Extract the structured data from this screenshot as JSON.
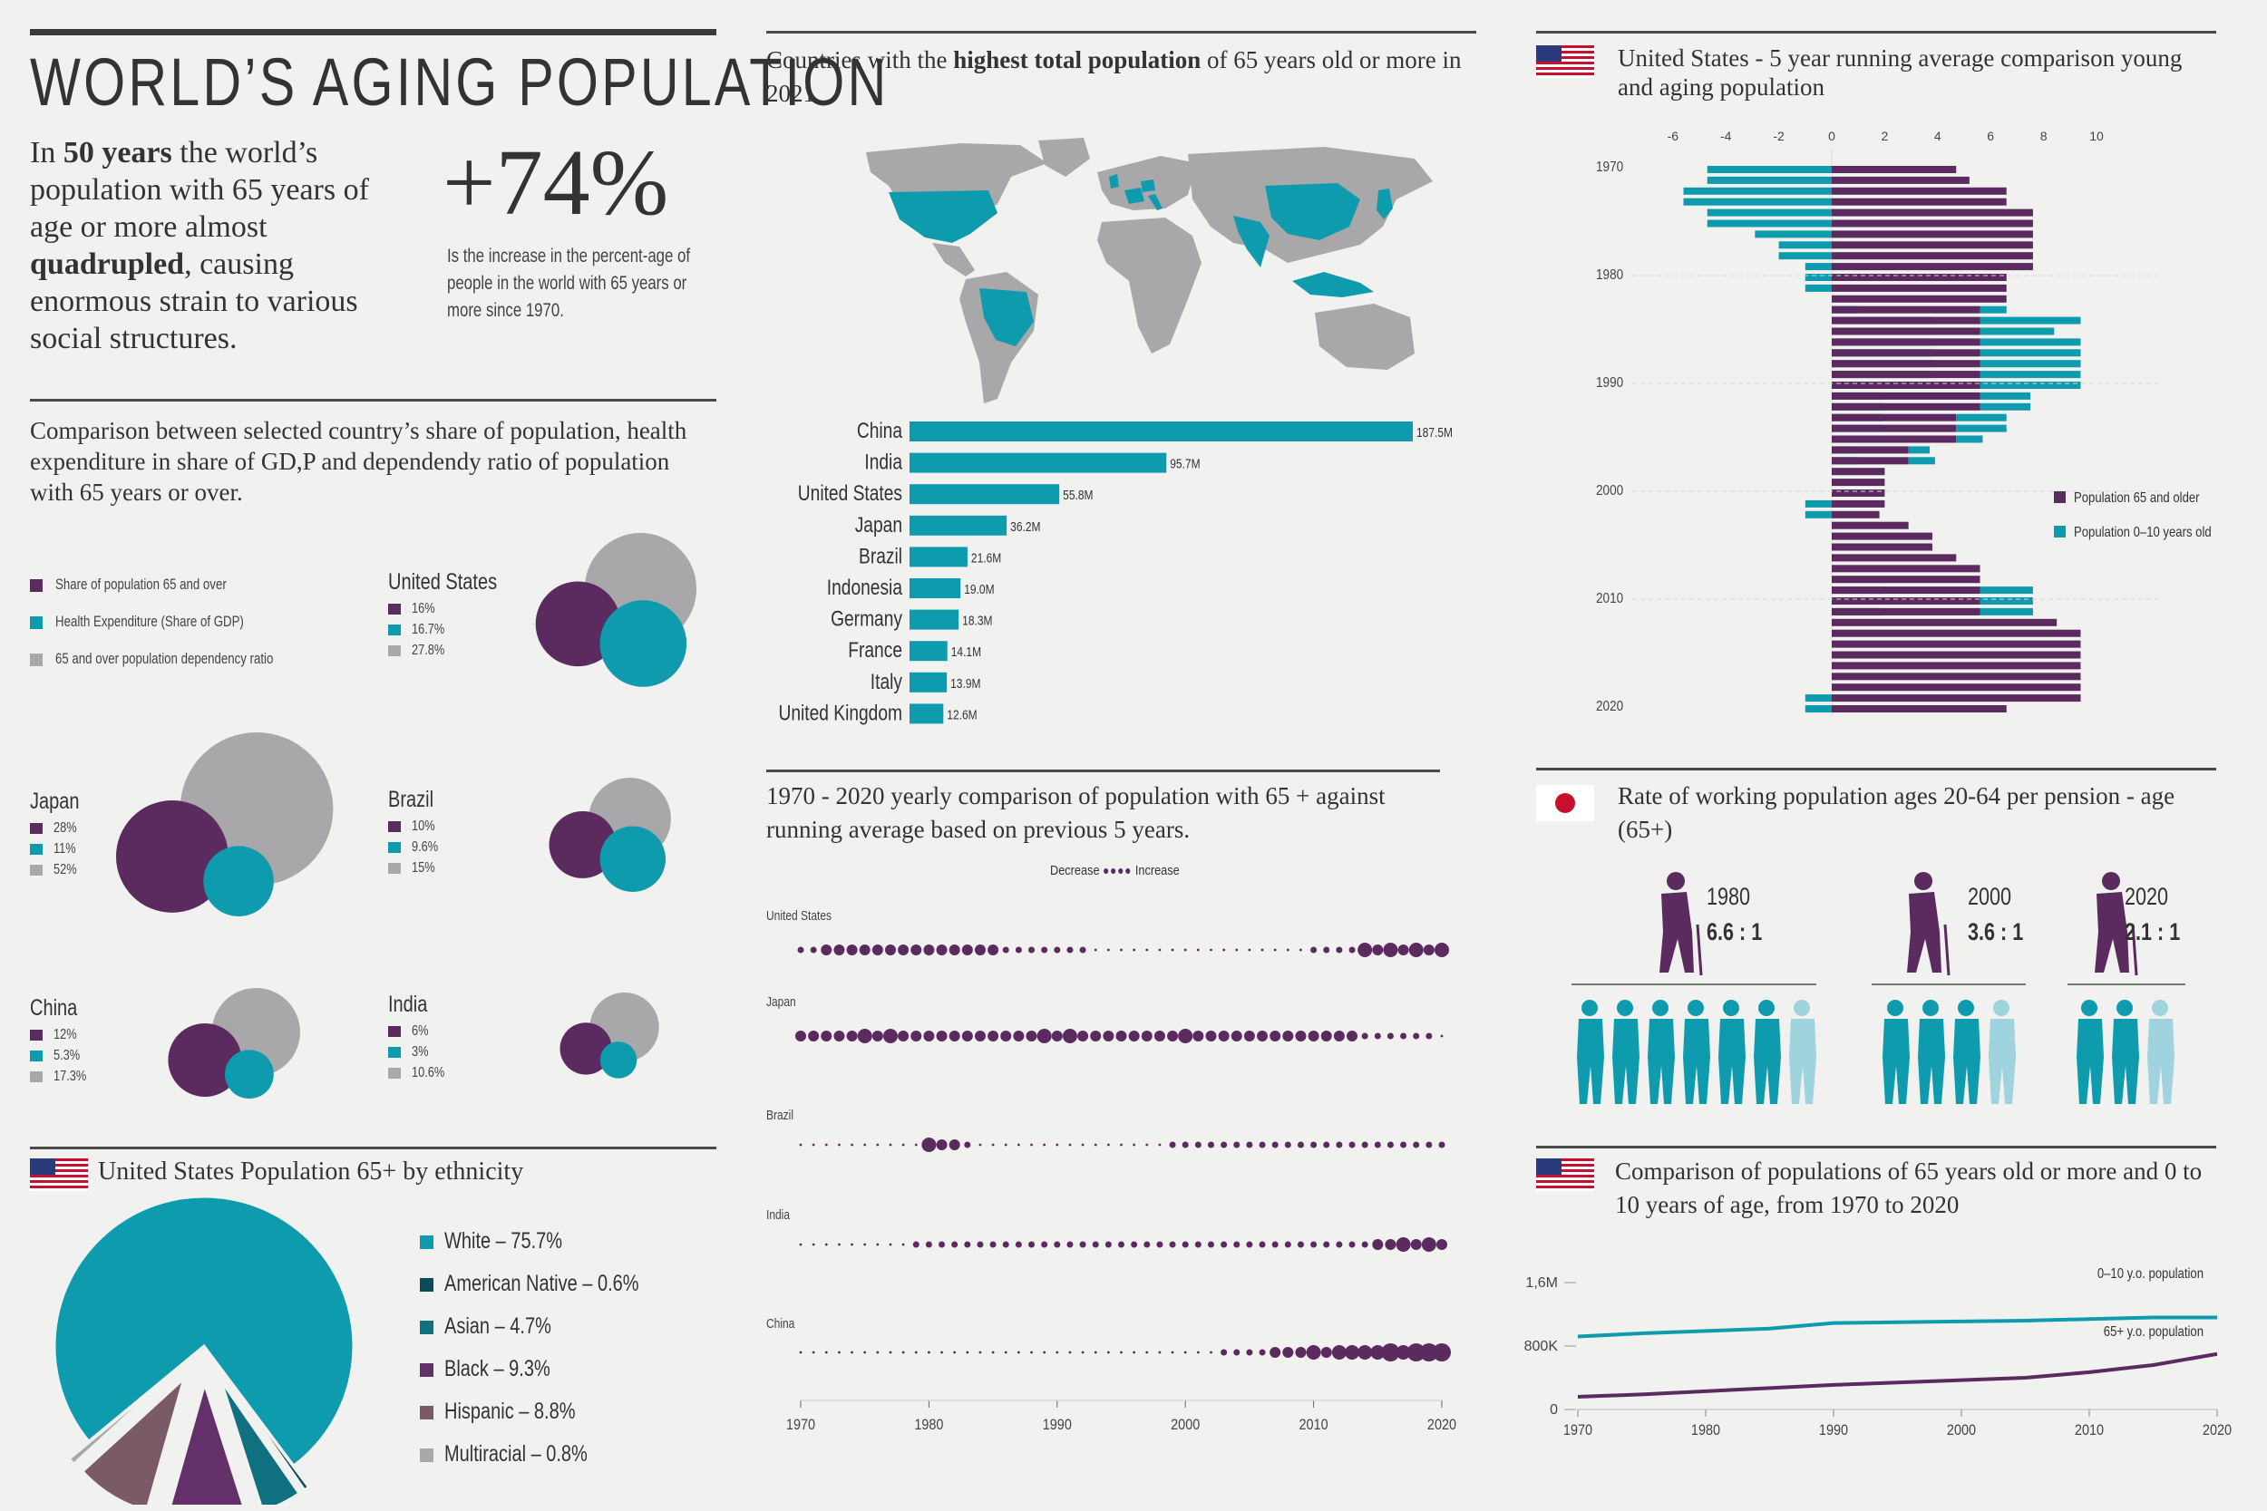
{
  "colors": {
    "purple": "#5b2a5e",
    "teal": "#0e9bae",
    "gray": "#a8a7a9",
    "dark": "#333333",
    "mauve": "#7a5a67",
    "darkteal": "#0d5d6b",
    "lightteal": "#9fd3dd"
  },
  "header": {
    "title": "WORLD’S AGING POPULATION"
  },
  "intro": {
    "p1": "In ",
    "bold1": "50 years",
    "p2": " the world’s population with 65 years of age or more almost ",
    "bold2": "quadrupled",
    "p3": ", causing enormous strain to various social structures."
  },
  "stat": {
    "value": "+74%",
    "caption": "Is the increase in the percent-age of people in the world with 65 years or more since 1970."
  },
  "bubbles": {
    "title": "Comparison between selected country’s share of population, health expenditure in share of GD,P and dependendy ratio of population with 65 years or over.",
    "legend": [
      "Share of population 65 and over",
      "Health Expenditure (Share of GDP)",
      "65 and over population dependency ratio"
    ],
    "countries": [
      {
        "name": "United States",
        "values": [
          "16%",
          "16.7%",
          "27.8%"
        ],
        "nums": [
          16,
          16.7,
          27.8
        ]
      },
      {
        "name": "Japan",
        "values": [
          "28%",
          "11%",
          "52%"
        ],
        "nums": [
          28,
          11,
          52
        ]
      },
      {
        "name": "Brazil",
        "values": [
          "10%",
          "9.6%",
          "15%"
        ],
        "nums": [
          10,
          9.6,
          15
        ]
      },
      {
        "name": "China",
        "values": [
          "12%",
          "5.3%",
          "17.3%"
        ],
        "nums": [
          12,
          5.3,
          17.3
        ]
      },
      {
        "name": "India",
        "values": [
          "6%",
          "3%",
          "10.6%"
        ],
        "nums": [
          6,
          3,
          10.6
        ]
      }
    ]
  },
  "ethnicity": {
    "title": "United States Population 65+ by ethnicity",
    "slices": [
      {
        "label": "White",
        "value": 75.7,
        "text": "White – 75.7%",
        "color": "#0e9bae"
      },
      {
        "label": "American Native",
        "value": 0.6,
        "text": "American Native – 0.6%",
        "color": "#0d4b58"
      },
      {
        "label": "Asian",
        "value": 4.7,
        "text": "Asian – 4.7%",
        "color": "#0f7180"
      },
      {
        "label": "Black",
        "value": 9.3,
        "text": "Black – 9.3%",
        "color": "#633069"
      },
      {
        "label": "Hispanic",
        "value": 8.8,
        "text": "Hispanic – 8.8%",
        "color": "#7a5a67"
      },
      {
        "label": "Multiracial",
        "value": 0.8,
        "text": "Multiracial – 0.8%",
        "color": "#a8a7a9"
      }
    ]
  },
  "countries_bar": {
    "title_pre": "Countries with the ",
    "title_bold": "highest total population",
    "title_post": " of 65 years old or more in 2021"
  },
  "yearly": {
    "title": "1970 - 2020 yearly comparison of population with 65 + against running average based on previous 5 years.",
    "legend_left": "Decrease",
    "legend_right": "Increase",
    "rows": [
      "United States",
      "Japan",
      "Brazil",
      "India",
      "China"
    ]
  },
  "us_running": {
    "title": "United States - 5 year running average comparison young and aging population"
  },
  "pension": {
    "title": "Rate of working population ages 20-64 per pension - age (65+)",
    "items": [
      {
        "year": "1980",
        "ratio": "6.6 : 1",
        "workers": 7
      },
      {
        "year": "2000",
        "ratio": "3.6 : 1",
        "workers": 4
      },
      {
        "year": "2020",
        "ratio": "2.1 : 1",
        "workers": 3
      }
    ]
  },
  "lines_title": "Comparison of populations of 65 years old or more and 0 to 10 years of age, from 1970 to 2020",
  "chart_data": [
    {
      "type": "bar",
      "title": "Countries with the highest total population of 65 years old or more in 2021",
      "categories": [
        "China",
        "India",
        "United States",
        "Japan",
        "Brazil",
        "Indonesia",
        "Germany",
        "France",
        "Italy",
        "United Kingdom"
      ],
      "values": [
        187.5,
        95.7,
        55.8,
        36.2,
        21.6,
        19.0,
        18.3,
        14.1,
        13.9,
        12.6
      ],
      "labels": [
        "187.5M",
        "95.7M",
        "55.8M",
        "36.2M",
        "21.6M",
        "19.0M",
        "18.3M",
        "14.1M",
        "13.9M",
        "12.6M"
      ],
      "unit": "M"
    },
    {
      "type": "bar",
      "title": "United States - 5 year running average comparison young and aging population",
      "orientation": "horizontal",
      "x_ticks": [
        "-6",
        "-4",
        "-2",
        "0",
        "2",
        "4",
        "6",
        "8",
        "10"
      ],
      "xlim": [
        -6,
        10
      ],
      "y_ticks": [
        "1970",
        "1980",
        "1990",
        "2000",
        "2010",
        "2020"
      ],
      "legend": [
        "Population 65 and older",
        "Population 0–10 years old"
      ],
      "years": [
        1970,
        1971,
        1972,
        1973,
        1974,
        1975,
        1976,
        1977,
        1978,
        1979,
        1980,
        1981,
        1982,
        1983,
        1984,
        1985,
        1986,
        1987,
        1988,
        1989,
        1990,
        1991,
        1992,
        1993,
        1994,
        1995,
        1996,
        1997,
        1998,
        1999,
        2000,
        2001,
        2002,
        2003,
        2004,
        2005,
        2006,
        2007,
        2008,
        2009,
        2010,
        2011,
        2012,
        2013,
        2014,
        2015,
        2016,
        2017,
        2018,
        2019,
        2020
      ],
      "series": [
        {
          "name": "Population 65 and older",
          "values": [
            4.7,
            5.2,
            6.6,
            6.6,
            7.6,
            7.6,
            7.6,
            7.6,
            7.6,
            7.6,
            6.6,
            6.6,
            6.6,
            5.6,
            5.6,
            5.6,
            5.6,
            5.6,
            5.6,
            5.6,
            5.6,
            5.6,
            5.6,
            4.7,
            4.7,
            4.7,
            2.9,
            2.9,
            2.0,
            2.0,
            2.0,
            2.0,
            1.8,
            2.9,
            3.8,
            3.8,
            4.7,
            5.6,
            5.6,
            5.6,
            5.6,
            5.6,
            8.5,
            9.4,
            9.4,
            9.4,
            9.4,
            9.4,
            9.4,
            9.4,
            6.6
          ]
        },
        {
          "name": "Population 0–10 years old",
          "values": [
            -4.7,
            -4.7,
            -5.6,
            -5.6,
            -4.7,
            -4.7,
            -2.9,
            -2.0,
            -2.0,
            -1.0,
            -1.0,
            -1.0,
            0,
            1.0,
            3.8,
            2.8,
            3.8,
            3.8,
            3.8,
            3.8,
            3.8,
            1.9,
            1.9,
            1.9,
            1.9,
            1.0,
            0.8,
            1.0,
            0,
            0,
            0,
            -1.0,
            -1.0,
            0,
            0,
            0,
            0,
            0,
            0,
            2.0,
            2.0,
            2.0,
            0,
            0,
            0,
            0,
            0,
            0,
            0,
            -1.0,
            -1.0
          ]
        }
      ]
    },
    {
      "type": "scatter",
      "title": "1970 - 2020 yearly comparison of population with 65 + against running average based on previous 5 years.",
      "x_ticks": [
        "1970",
        "1980",
        "1990",
        "2000",
        "2010",
        "2020"
      ],
      "xlim": [
        1970,
        2020
      ],
      "series": [
        {
          "name": "United States",
          "values": [
            1,
            1,
            2,
            2,
            2,
            2,
            2,
            2,
            2,
            2,
            2,
            2,
            2,
            2,
            2,
            2,
            1,
            1,
            1,
            1,
            1,
            1,
            1,
            0,
            0,
            0,
            0,
            0,
            0,
            0,
            0,
            0,
            0,
            0,
            0,
            0,
            0,
            0,
            0,
            0,
            1,
            1,
            1,
            1,
            3,
            2,
            3,
            2,
            3,
            2,
            3
          ]
        },
        {
          "name": "Japan",
          "values": [
            2,
            2,
            2,
            2,
            2,
            3,
            2,
            3,
            2,
            2,
            2,
            2,
            2,
            2,
            2,
            2,
            2,
            2,
            2,
            3,
            2,
            3,
            2,
            2,
            2,
            2,
            2,
            2,
            2,
            2,
            3,
            2,
            2,
            2,
            2,
            2,
            2,
            2,
            2,
            2,
            2,
            2,
            2,
            2,
            1,
            1,
            1,
            1,
            1,
            1,
            0
          ]
        },
        {
          "name": "Brazil",
          "values": [
            0,
            0,
            0,
            0,
            0,
            0,
            0,
            0,
            0,
            0,
            3,
            2,
            2,
            1,
            0,
            0,
            0,
            0,
            0,
            0,
            0,
            0,
            0,
            0,
            0,
            0,
            0,
            0,
            0,
            1,
            1,
            1,
            1,
            1,
            1,
            1,
            1,
            1,
            1,
            1,
            1,
            1,
            1,
            1,
            1,
            1,
            1,
            1,
            1,
            1,
            1
          ]
        },
        {
          "name": "India",
          "values": [
            0,
            0,
            0,
            0,
            0,
            0,
            0,
            0,
            0,
            1,
            1,
            1,
            1,
            1,
            1,
            1,
            1,
            1,
            1,
            1,
            1,
            1,
            1,
            1,
            1,
            1,
            1,
            1,
            1,
            1,
            1,
            1,
            1,
            1,
            1,
            1,
            1,
            1,
            1,
            1,
            1,
            1,
            1,
            1,
            1,
            2,
            2,
            3,
            2,
            3,
            2
          ]
        },
        {
          "name": "China",
          "values": [
            0,
            0,
            0,
            0,
            0,
            0,
            0,
            0,
            0,
            0,
            0,
            0,
            0,
            0,
            0,
            0,
            0,
            0,
            0,
            0,
            0,
            0,
            0,
            0,
            0,
            0,
            0,
            0,
            0,
            0,
            0,
            0,
            0,
            1,
            1,
            1,
            1,
            2,
            2,
            2,
            3,
            2,
            3,
            3,
            3,
            3,
            4,
            3,
            4,
            4,
            4
          ]
        }
      ]
    },
    {
      "type": "line",
      "title": "Comparison of populations of 65 years old or more and 0 to 10 years of age, from 1970 to 2020",
      "x_ticks": [
        "1970",
        "1980",
        "1990",
        "2000",
        "2010",
        "2020"
      ],
      "y_ticks": [
        "0",
        "800K",
        "1,6M"
      ],
      "xlim": [
        1970,
        2020
      ],
      "ylim": [
        0,
        1600
      ],
      "x": [
        1970,
        1975,
        1980,
        1985,
        1990,
        1995,
        2000,
        2005,
        2010,
        2015,
        2020
      ],
      "series": [
        {
          "name": "0–10 y.o. population",
          "values": [
            920,
            960,
            990,
            1020,
            1090,
            1100,
            1110,
            1120,
            1140,
            1160,
            1160
          ]
        },
        {
          "name": "65+ y.o. population",
          "values": [
            160,
            190,
            230,
            270,
            310,
            340,
            370,
            400,
            470,
            560,
            700
          ]
        }
      ]
    }
  ]
}
